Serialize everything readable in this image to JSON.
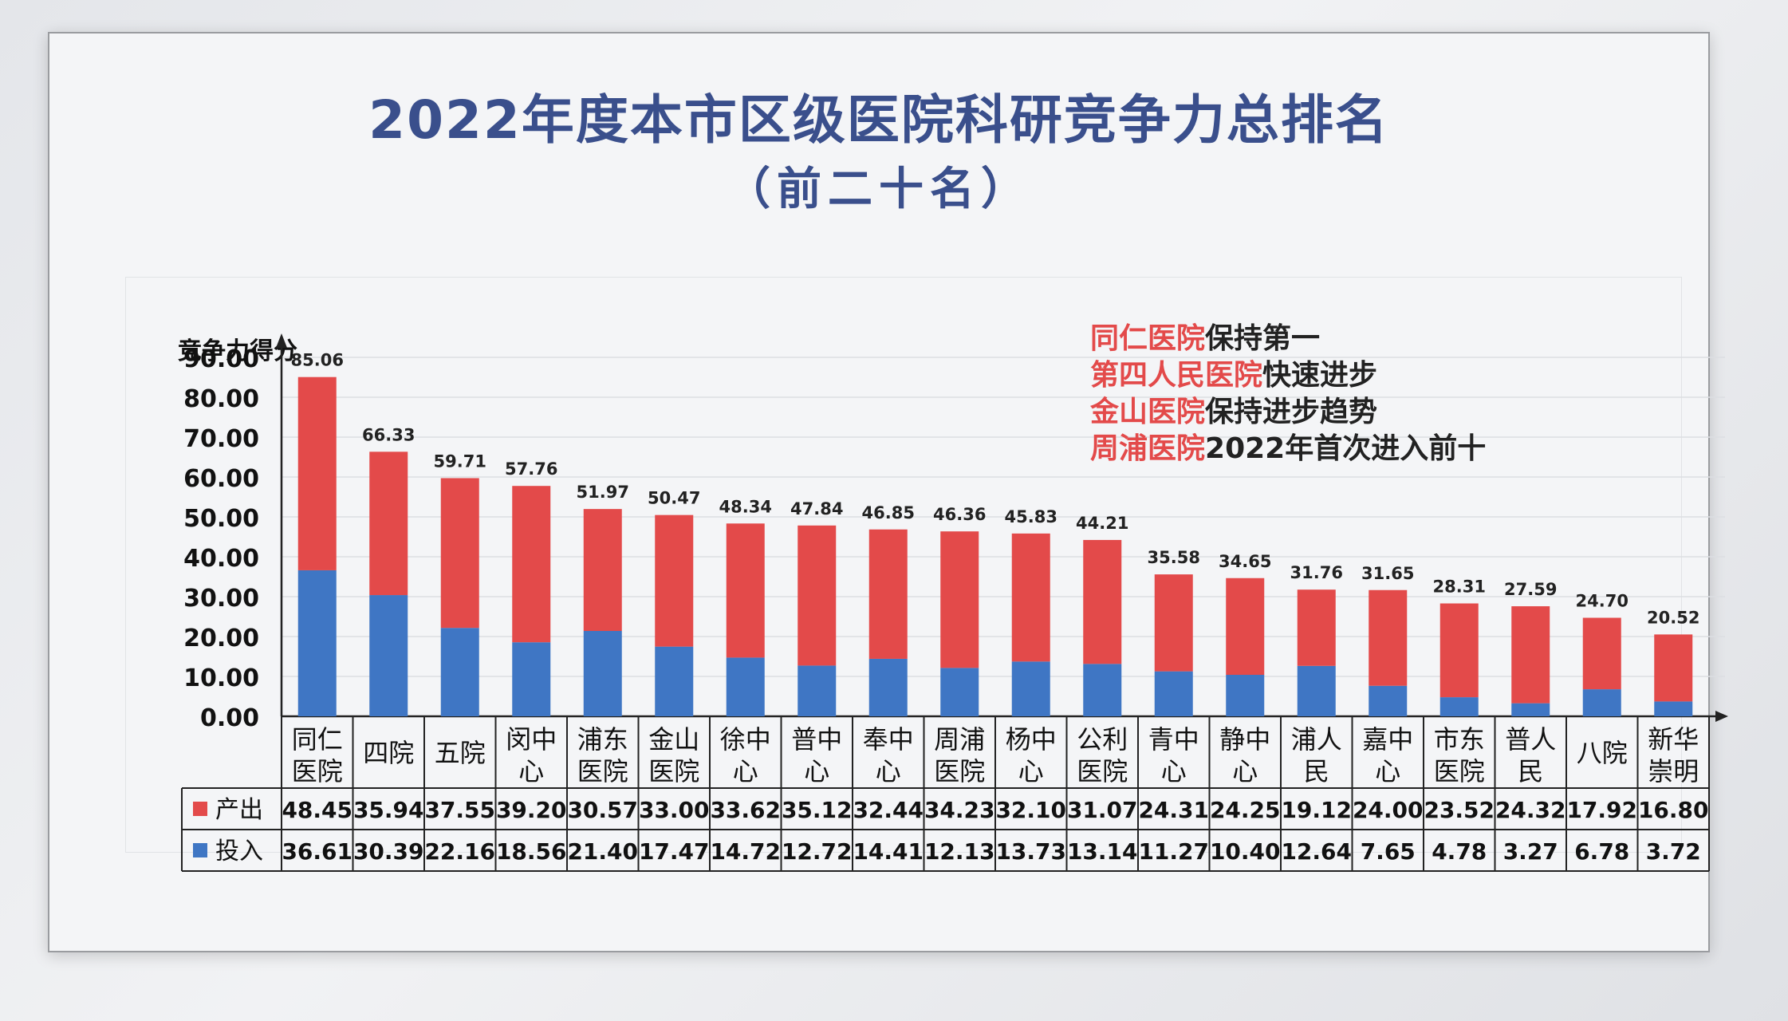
{
  "title": "2022年度本市区级医院科研竞争力总排名",
  "subtitle": "（前二十名）",
  "annotations": [
    {
      "highlight": "同仁医院",
      "text": "保持第一"
    },
    {
      "highlight": "第四人民医院",
      "text": "快速进步"
    },
    {
      "highlight": "金山医院",
      "text": "保持进步趋势"
    },
    {
      "highlight": "周浦医院",
      "text": "2022年首次进入前十"
    }
  ],
  "colors": {
    "output": "#e34a4a",
    "input": "#3f76c4",
    "title": "#3a4f8c"
  },
  "chart_data": {
    "type": "bar",
    "stacked": true,
    "ylabel": "竞争力得分",
    "ylim": [
      0,
      90
    ],
    "yticks": [
      "0.00",
      "10.00",
      "20.00",
      "30.00",
      "40.00",
      "50.00",
      "60.00",
      "70.00",
      "80.00",
      "90.00"
    ],
    "grid": true,
    "categories": [
      [
        "同仁",
        "医院"
      ],
      [
        "四院"
      ],
      [
        "五院"
      ],
      [
        "闵中",
        "心"
      ],
      [
        "浦东",
        "医院"
      ],
      [
        "金山",
        "医院"
      ],
      [
        "徐中",
        "心"
      ],
      [
        "普中",
        "心"
      ],
      [
        "奉中",
        "心"
      ],
      [
        "周浦",
        "医院"
      ],
      [
        "杨中",
        "心"
      ],
      [
        "公利",
        "医院"
      ],
      [
        "青中",
        "心"
      ],
      [
        "静中",
        "心"
      ],
      [
        "浦人",
        "民"
      ],
      [
        "嘉中",
        "心"
      ],
      [
        "市东",
        "医院"
      ],
      [
        "普人",
        "民"
      ],
      [
        "八院"
      ],
      [
        "新华",
        "崇明"
      ]
    ],
    "totals": [
      "85.06",
      "66.33",
      "59.71",
      "57.76",
      "51.97",
      "50.47",
      "48.34",
      "47.84",
      "46.85",
      "46.36",
      "45.83",
      "44.21",
      "35.58",
      "34.65",
      "31.76",
      "31.65",
      "28.31",
      "27.59",
      "24.70",
      "20.52"
    ],
    "series": [
      {
        "name": "投入",
        "color": "#3f76c4",
        "values": [
          36.61,
          30.39,
          22.16,
          18.56,
          21.4,
          17.47,
          14.72,
          12.72,
          14.41,
          12.13,
          13.73,
          13.14,
          11.27,
          10.4,
          12.64,
          7.65,
          4.78,
          3.27,
          6.78,
          3.72
        ],
        "labels": [
          "36.61",
          "30.39",
          "22.16",
          "18.56",
          "21.40",
          "17.47",
          "14.72",
          "12.72",
          "14.41",
          "12.13",
          "13.73",
          "13.14",
          "11.27",
          "10.40",
          "12.64",
          "7.65",
          "4.78",
          "3.27",
          "6.78",
          "3.72"
        ]
      },
      {
        "name": "产出",
        "color": "#e34a4a",
        "values": [
          48.45,
          35.94,
          37.55,
          39.2,
          30.57,
          33.0,
          33.62,
          35.12,
          32.44,
          34.23,
          32.1,
          31.07,
          24.31,
          24.25,
          19.12,
          24.0,
          23.52,
          24.32,
          17.92,
          16.8
        ],
        "labels": [
          "48.45",
          "35.94",
          "37.55",
          "39.20",
          "30.57",
          "33.00",
          "33.62",
          "35.12",
          "32.44",
          "34.23",
          "32.10",
          "31.07",
          "24.31",
          "24.25",
          "19.12",
          "24.00",
          "23.52",
          "24.32",
          "17.92",
          "16.80"
        ]
      }
    ],
    "table_rows": [
      {
        "name": "产出",
        "color": "#e34a4a"
      },
      {
        "name": "投入",
        "color": "#3f76c4"
      }
    ]
  }
}
